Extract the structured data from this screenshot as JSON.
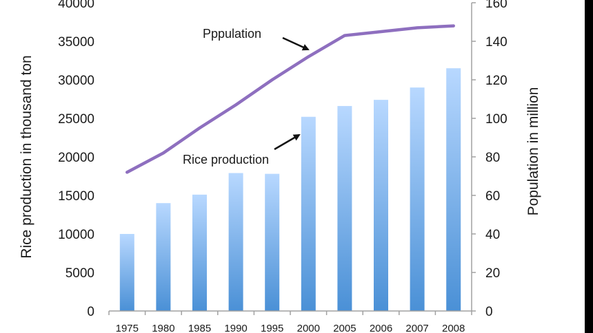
{
  "chart_data": {
    "type": "bar",
    "categories": [
      "1975",
      "1980",
      "1985",
      "1990",
      "1995",
      "2000",
      "2005",
      "2006",
      "2007",
      "2008"
    ],
    "series": [
      {
        "name": "Rice production",
        "type": "bar",
        "axis": "left",
        "values": [
          10000,
          14000,
          15100,
          17900,
          17800,
          25200,
          26600,
          27400,
          29000,
          31500
        ]
      },
      {
        "name": "Pppulation",
        "type": "line",
        "axis": "right",
        "values": [
          72,
          82,
          95,
          107,
          120,
          132,
          143,
          145,
          147,
          148
        ]
      }
    ],
    "ylabel": "Rice production in thousand ton",
    "y2label": "Population in million",
    "ylim": [
      0,
      40000
    ],
    "y2lim": [
      0,
      160
    ],
    "yticks": [
      "0",
      "5000",
      "10000",
      "15000",
      "20000",
      "25000",
      "30000",
      "35000",
      "40000"
    ],
    "y2ticks": [
      "0",
      "20",
      "40",
      "60",
      "80",
      "100",
      "120",
      "140",
      "160"
    ],
    "annotations": [
      {
        "text": "Pppulation",
        "target": "line"
      },
      {
        "text": "Rice production",
        "target": "bars"
      }
    ],
    "colors": {
      "bar_top": "#b8d8ff",
      "bar_bottom": "#4a90d6",
      "line": "#8e6fbf",
      "axis": "#a0a0a0"
    },
    "grid": false
  }
}
